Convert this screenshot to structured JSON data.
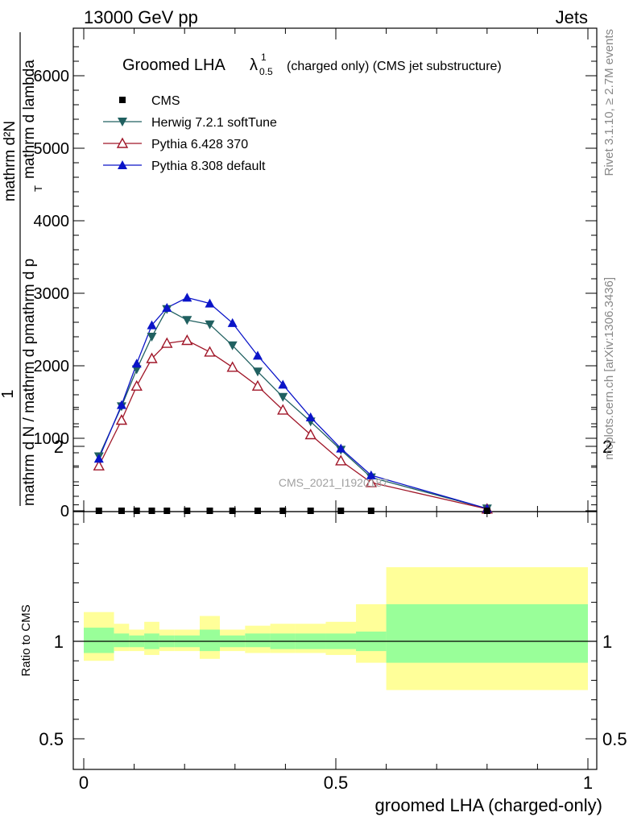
{
  "header": {
    "left": "13000 GeV pp",
    "right": "Jets"
  },
  "chart_data": {
    "type": "line",
    "title": "Groomed LHA",
    "title_lambda": "λ",
    "title_sup": "1",
    "title_sub": "0.5",
    "title_suffix": "(charged only) (CMS jet substructure)",
    "ylabel_num": "1",
    "ylabel_den": "mathrm d N / mathrm d pmathrm d p",
    "ylabel_den_sub": "T",
    "ylabel_den_tail": "mathrm d lambda",
    "ylabel_small": "mathrm d²N",
    "xlabel": "groomed LHA (charged-only)",
    "ratio_ylabel": "Ratio to CMS",
    "watermark": "CMS_2021_I1920187",
    "side_top": "Rivet 3.1.10, ≥ 2.7M events",
    "side_bottom": "mcplots.cern.ch [arXiv:1306.3436]",
    "xlim": [
      0,
      1
    ],
    "ylim": [
      0,
      6000
    ],
    "yticks": [
      0,
      1000,
      2000,
      3000,
      4000,
      5000,
      6000
    ],
    "ytick_labels": [
      "0",
      "1000",
      "2000",
      "3000",
      "4000",
      "5000",
      "6000"
    ],
    "xticks": [
      0,
      0.5,
      1
    ],
    "xtick_labels": [
      "0",
      "0.5",
      "1"
    ],
    "ratio_ylim": [
      0.4,
      2.4
    ],
    "ratio_yticks": [
      0.5,
      1,
      2
    ],
    "ratio_ytick_labels": [
      "0.5",
      "1",
      "2"
    ],
    "bin_edges": [
      0,
      0.06,
      0.09,
      0.12,
      0.15,
      0.18,
      0.23,
      0.27,
      0.32,
      0.37,
      0.42,
      0.48,
      0.54,
      0.6,
      1.0
    ],
    "x": [
      0.03,
      0.075,
      0.105,
      0.135,
      0.165,
      0.205,
      0.25,
      0.295,
      0.345,
      0.395,
      0.45,
      0.51,
      0.57,
      0.8
    ],
    "cms": [
      0,
      0,
      0,
      0,
      0,
      0,
      0,
      0,
      0,
      0,
      0,
      0,
      0,
      0
    ],
    "ratio_band_inner": [
      [
        0.94,
        1.07
      ],
      [
        0.97,
        1.04
      ],
      [
        0.97,
        1.03
      ],
      [
        0.96,
        1.04
      ],
      [
        0.97,
        1.03
      ],
      [
        0.97,
        1.03
      ],
      [
        0.95,
        1.06
      ],
      [
        0.97,
        1.03
      ],
      [
        0.97,
        1.04
      ],
      [
        0.96,
        1.04
      ],
      [
        0.96,
        1.04
      ],
      [
        0.96,
        1.04
      ],
      [
        0.95,
        1.05
      ],
      [
        0.89,
        1.19
      ]
    ],
    "ratio_band_outer": [
      [
        0.9,
        1.15
      ],
      [
        0.95,
        1.09
      ],
      [
        0.95,
        1.06
      ],
      [
        0.93,
        1.1
      ],
      [
        0.95,
        1.06
      ],
      [
        0.95,
        1.06
      ],
      [
        0.91,
        1.13
      ],
      [
        0.95,
        1.06
      ],
      [
        0.94,
        1.08
      ],
      [
        0.94,
        1.09
      ],
      [
        0.94,
        1.09
      ],
      [
        0.93,
        1.1
      ],
      [
        0.89,
        1.19
      ],
      [
        0.75,
        1.38
      ]
    ],
    "series": [
      {
        "name": "CMS",
        "color": "#000000",
        "marker": "square"
      },
      {
        "name": "Herwig 7.2.1 softTune",
        "color": "#206060",
        "marker": "triangle-down",
        "values": [
          750,
          1440,
          1950,
          2400,
          2780,
          2630,
          2570,
          2280,
          1920,
          1570,
          1230,
          840,
          460,
          30
        ]
      },
      {
        "name": "Pythia 6.428 370",
        "color": "#a01628",
        "marker": "triangle-up-open",
        "values": [
          620,
          1250,
          1720,
          2100,
          2310,
          2350,
          2190,
          1980,
          1720,
          1390,
          1050,
          690,
          390,
          25
        ]
      },
      {
        "name": "Pythia 8.308 default",
        "color": "#0a14c8",
        "marker": "triangle-up",
        "values": [
          720,
          1460,
          2030,
          2560,
          2800,
          2940,
          2860,
          2590,
          2140,
          1740,
          1290,
          860,
          490,
          30
        ]
      }
    ]
  }
}
